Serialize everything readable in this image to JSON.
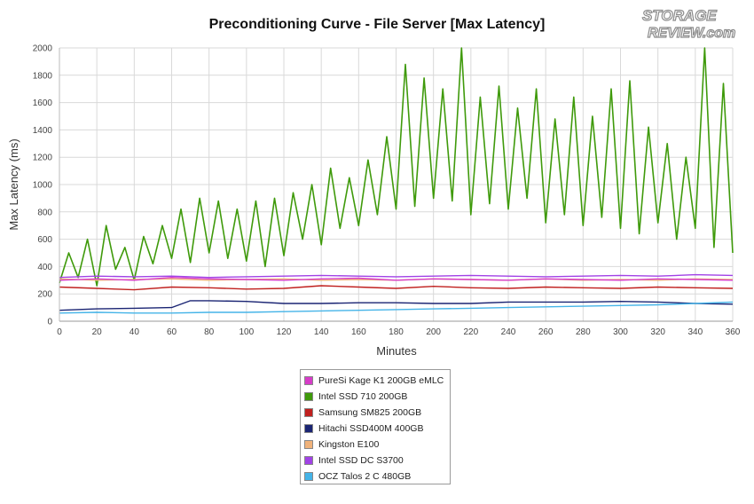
{
  "chart_data": {
    "type": "line",
    "title": "Preconditioning Curve - File Server [Max Latency]",
    "xlabel": "Minutes",
    "ylabel": "Max Latency (ms)",
    "xlim": [
      0,
      360
    ],
    "ylim": [
      0,
      2000
    ],
    "x_ticks": [
      0,
      20,
      40,
      60,
      80,
      100,
      120,
      140,
      160,
      180,
      200,
      220,
      240,
      260,
      280,
      300,
      320,
      340,
      360
    ],
    "y_ticks": [
      0,
      200,
      400,
      600,
      800,
      1000,
      1200,
      1400,
      1600,
      1800,
      2000
    ],
    "grid": true,
    "legend_position": "bottom-center",
    "series": [
      {
        "name": "PureSi Kage K1 200GB eMLC",
        "color": "#d63cc8",
        "x": [
          0,
          20,
          40,
          60,
          80,
          100,
          120,
          140,
          160,
          180,
          200,
          220,
          240,
          260,
          280,
          300,
          320,
          340,
          360
        ],
        "values": [
          300,
          310,
          300,
          320,
          310,
          305,
          300,
          310,
          315,
          300,
          310,
          305,
          300,
          310,
          305,
          300,
          310,
          305,
          300
        ]
      },
      {
        "name": "Intel SSD 710 200GB",
        "color": "#3f9a0b",
        "x": [
          0,
          5,
          10,
          15,
          20,
          25,
          30,
          35,
          40,
          45,
          50,
          55,
          60,
          65,
          70,
          75,
          80,
          85,
          90,
          95,
          100,
          105,
          110,
          115,
          120,
          125,
          130,
          135,
          140,
          145,
          150,
          155,
          160,
          165,
          170,
          175,
          180,
          185,
          190,
          195,
          200,
          205,
          210,
          215,
          220,
          225,
          230,
          235,
          240,
          245,
          250,
          255,
          260,
          265,
          270,
          275,
          280,
          285,
          290,
          295,
          300,
          305,
          310,
          315,
          320,
          325,
          330,
          335,
          340,
          345,
          350,
          355,
          360
        ],
        "values": [
          280,
          500,
          320,
          600,
          260,
          700,
          380,
          540,
          300,
          620,
          420,
          700,
          460,
          820,
          430,
          900,
          500,
          880,
          460,
          820,
          440,
          880,
          400,
          900,
          480,
          940,
          600,
          1000,
          560,
          1120,
          680,
          1050,
          700,
          1180,
          780,
          1350,
          820,
          1880,
          840,
          1780,
          900,
          1700,
          880,
          2000,
          780,
          1640,
          860,
          1720,
          820,
          1560,
          900,
          1700,
          720,
          1480,
          780,
          1640,
          700,
          1500,
          760,
          1700,
          680,
          1760,
          640,
          1420,
          720,
          1300,
          600,
          1200,
          680,
          2000,
          540,
          1740,
          500
        ]
      },
      {
        "name": "Samsung SM825 200GB",
        "color": "#c0201e",
        "x": [
          0,
          20,
          40,
          60,
          80,
          100,
          120,
          140,
          160,
          180,
          200,
          220,
          240,
          260,
          280,
          300,
          320,
          340,
          360
        ],
        "values": [
          250,
          240,
          230,
          250,
          245,
          235,
          240,
          260,
          250,
          240,
          255,
          245,
          240,
          250,
          245,
          240,
          250,
          245,
          240
        ]
      },
      {
        "name": "Hitachi SSD400M 400GB",
        "color": "#1a2473",
        "x": [
          0,
          20,
          40,
          60,
          70,
          80,
          100,
          120,
          140,
          160,
          180,
          200,
          220,
          240,
          260,
          280,
          300,
          320,
          340,
          360
        ],
        "values": [
          80,
          90,
          95,
          100,
          150,
          150,
          145,
          130,
          130,
          135,
          135,
          130,
          130,
          140,
          140,
          140,
          145,
          140,
          130,
          125
        ]
      },
      {
        "name": "Kingston E100",
        "color": "#f0b27a",
        "x": [
          0,
          20,
          40,
          60,
          80,
          100,
          120,
          140,
          160,
          180,
          200,
          220,
          240,
          260,
          280,
          300,
          320,
          340,
          360
        ],
        "values": [
          310,
          300,
          305,
          310,
          300,
          305,
          310,
          300,
          305,
          300,
          310,
          305,
          300,
          310,
          300,
          305,
          300,
          310,
          305
        ]
      },
      {
        "name": "Intel SSD DC S3700",
        "color": "#a142e6",
        "x": [
          0,
          20,
          40,
          60,
          80,
          100,
          120,
          140,
          160,
          180,
          200,
          220,
          240,
          260,
          280,
          300,
          320,
          340,
          360
        ],
        "values": [
          320,
          330,
          325,
          330,
          320,
          325,
          330,
          335,
          330,
          325,
          330,
          335,
          330,
          325,
          330,
          335,
          330,
          340,
          335
        ]
      },
      {
        "name": "OCZ Talos 2 C 480GB",
        "color": "#45b4e8",
        "x": [
          0,
          20,
          40,
          60,
          80,
          100,
          120,
          140,
          160,
          180,
          200,
          220,
          240,
          260,
          280,
          300,
          320,
          340,
          360
        ],
        "values": [
          60,
          65,
          60,
          60,
          65,
          65,
          70,
          75,
          80,
          85,
          90,
          95,
          100,
          105,
          110,
          115,
          120,
          130,
          140
        ]
      }
    ]
  },
  "logo": {
    "line1": "STORAGE",
    "line2": "REVIEW.com"
  }
}
